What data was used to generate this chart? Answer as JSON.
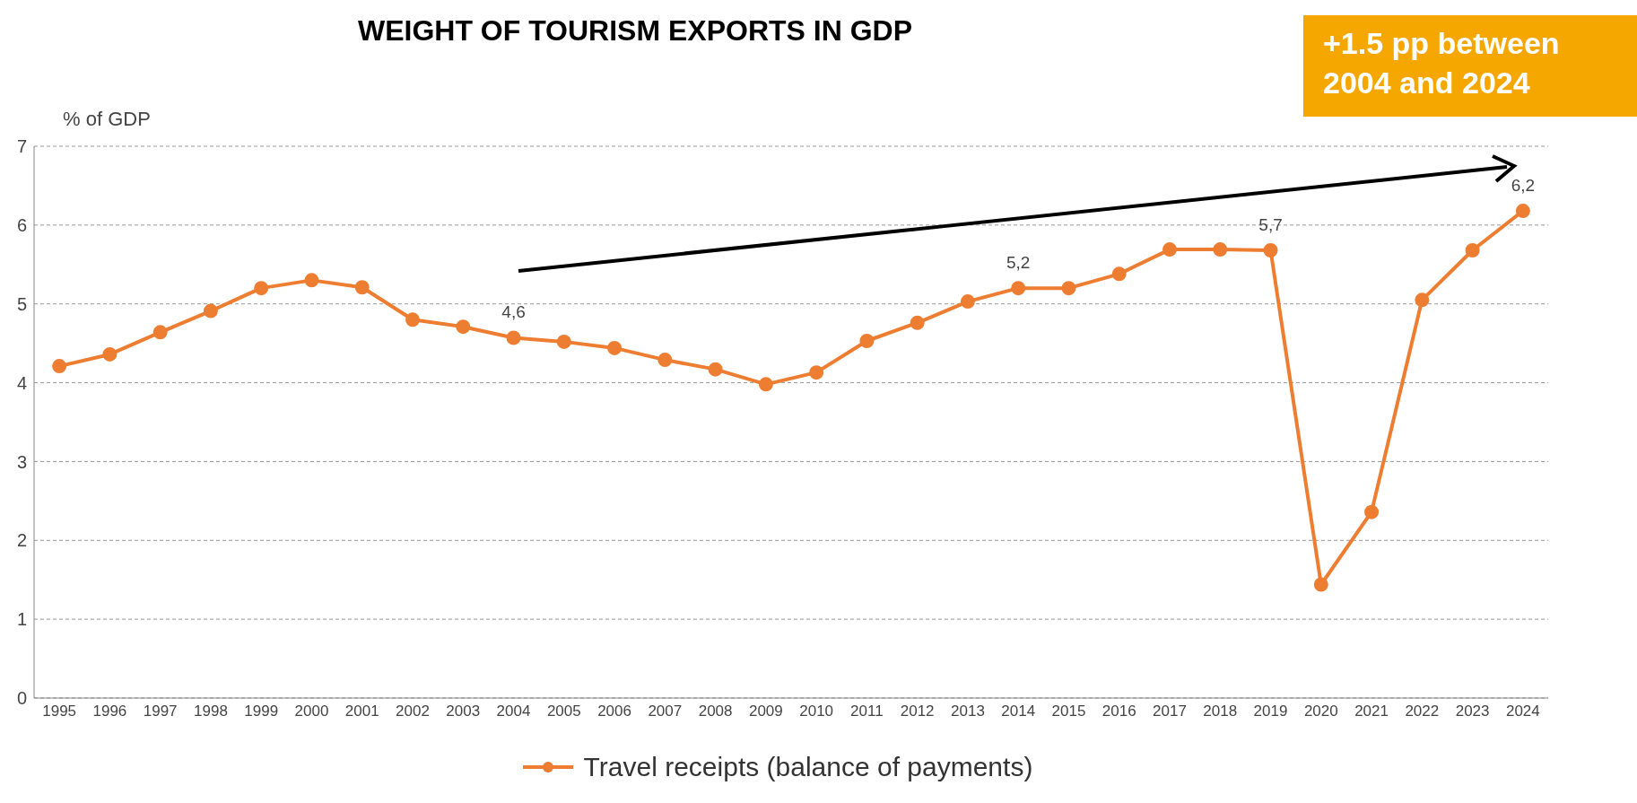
{
  "chart_data": {
    "type": "line",
    "title": "WEIGHT OF TOURISM EXPORTS IN GDP",
    "ylabel": "% of GDP",
    "categories": [
      "1995",
      "1996",
      "1997",
      "1998",
      "1999",
      "2000",
      "2001",
      "2002",
      "2003",
      "2004",
      "2005",
      "2006",
      "2007",
      "2008",
      "2009",
      "2010",
      "2011",
      "2012",
      "2013",
      "2014",
      "2015",
      "2016",
      "2017",
      "2018",
      "2019",
      "2020",
      "2021",
      "2022",
      "2023",
      "2024"
    ],
    "series": [
      {
        "name": "Travel receipts (balance of payments)",
        "color": "#ed7d31",
        "values": [
          4.21,
          4.36,
          4.64,
          4.91,
          5.2,
          5.3,
          5.21,
          4.8,
          4.71,
          4.57,
          4.52,
          4.44,
          4.29,
          4.17,
          3.98,
          4.13,
          4.53,
          4.76,
          5.03,
          5.2,
          5.2,
          5.38,
          5.69,
          5.69,
          5.68,
          1.44,
          2.36,
          5.05,
          5.68,
          6.18
        ],
        "value_labels": [
          null,
          null,
          null,
          null,
          null,
          null,
          null,
          null,
          null,
          "4,6",
          null,
          null,
          null,
          null,
          null,
          null,
          null,
          null,
          null,
          "5,2",
          null,
          null,
          null,
          null,
          "5,7",
          null,
          null,
          null,
          null,
          "6,2"
        ]
      }
    ],
    "ylim": [
      0,
      7
    ],
    "yticks": [
      0,
      1,
      2,
      3,
      4,
      5,
      6,
      7
    ],
    "grid": "y",
    "legend": "bottom",
    "marker": "circle",
    "line_style": "solid",
    "annotations": [
      "+1.5 pp between 2004 and 2024"
    ]
  }
}
